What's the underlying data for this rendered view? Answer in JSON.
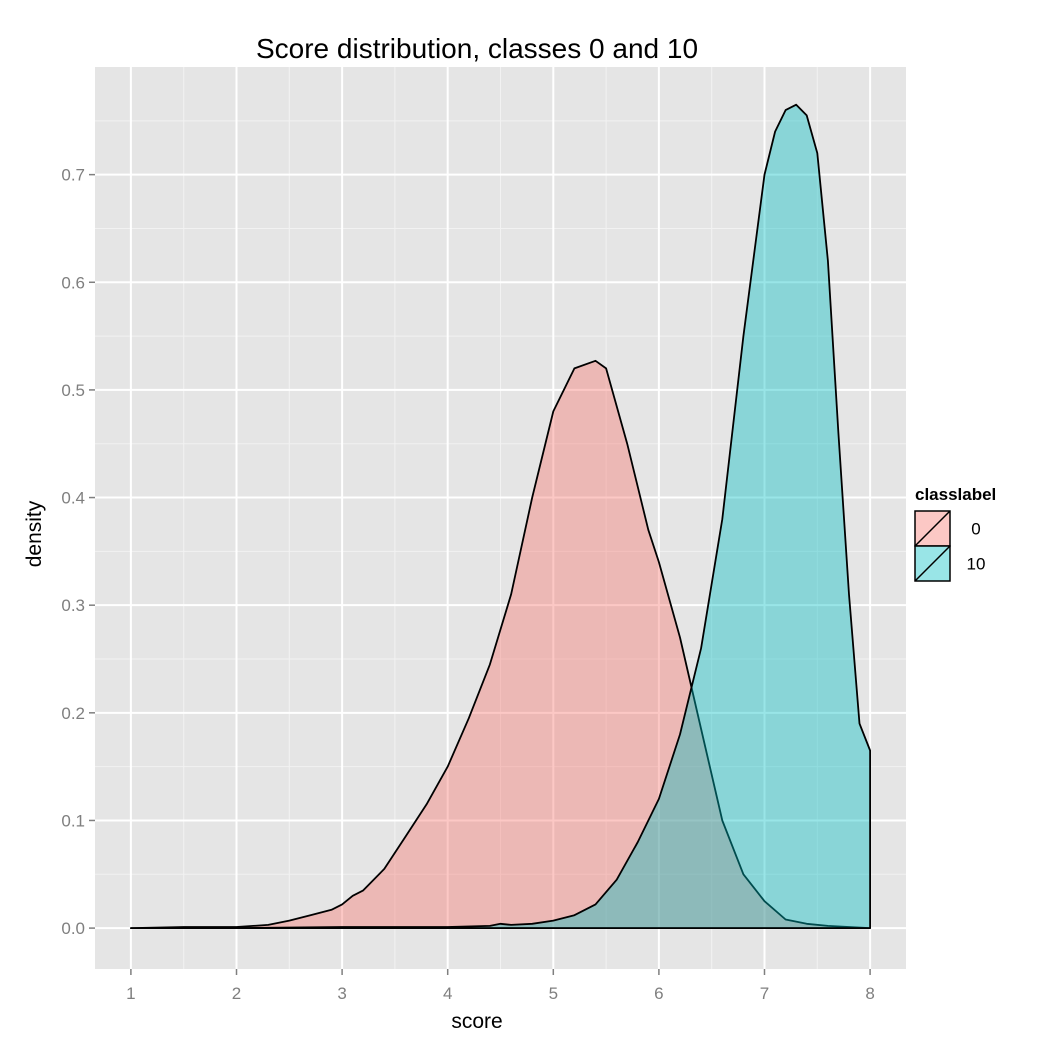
{
  "chart_data": {
    "type": "area",
    "title": "Score distribution, classes 0 and 10",
    "xlabel": "score",
    "ylabel": "density",
    "xlim": [
      0.66,
      8.34
    ],
    "ylim": [
      -0.038,
      0.8
    ],
    "x_ticks": [
      1,
      2,
      3,
      4,
      5,
      6,
      7,
      8
    ],
    "x_tick_labels": [
      "1",
      "2",
      "3",
      "4",
      "5",
      "6",
      "7",
      "8"
    ],
    "y_ticks": [
      0.0,
      0.1,
      0.2,
      0.3,
      0.4,
      0.5,
      0.6,
      0.7
    ],
    "y_tick_labels": [
      "0.0",
      "0.1",
      "0.2",
      "0.3",
      "0.4",
      "0.5",
      "0.6",
      "0.7"
    ],
    "grid": true,
    "background": "#e5e5e5",
    "legend": {
      "title": "classlabel",
      "position": "right",
      "entries": [
        "0",
        "10"
      ]
    },
    "series": [
      {
        "name": "0",
        "color": "#f8766d",
        "x": [
          1.0,
          1.5,
          2.0,
          2.3,
          2.5,
          2.7,
          2.9,
          3.0,
          3.1,
          3.2,
          3.4,
          3.6,
          3.8,
          4.0,
          4.2,
          4.4,
          4.6,
          4.8,
          5.0,
          5.2,
          5.4,
          5.5,
          5.7,
          5.9,
          6.0,
          6.2,
          6.4,
          6.6,
          6.8,
          7.0,
          7.2,
          7.4,
          7.6,
          7.8,
          8.0
        ],
        "y": [
          0.0,
          0.001,
          0.001,
          0.003,
          0.007,
          0.012,
          0.017,
          0.022,
          0.03,
          0.035,
          0.055,
          0.085,
          0.115,
          0.15,
          0.195,
          0.245,
          0.31,
          0.4,
          0.48,
          0.52,
          0.527,
          0.52,
          0.45,
          0.37,
          0.34,
          0.27,
          0.185,
          0.1,
          0.05,
          0.025,
          0.008,
          0.004,
          0.002,
          0.001,
          0.0
        ]
      },
      {
        "name": "10",
        "color": "#00bfc4",
        "x": [
          1.0,
          2.0,
          3.0,
          4.0,
          4.4,
          4.5,
          4.6,
          4.8,
          5.0,
          5.2,
          5.4,
          5.6,
          5.8,
          6.0,
          6.2,
          6.4,
          6.6,
          6.8,
          7.0,
          7.1,
          7.2,
          7.3,
          7.4,
          7.5,
          7.6,
          7.7,
          7.8,
          7.9,
          8.0,
          8.0
        ],
        "y": [
          0.0,
          0.0,
          0.001,
          0.001,
          0.002,
          0.004,
          0.003,
          0.004,
          0.007,
          0.012,
          0.022,
          0.045,
          0.08,
          0.12,
          0.18,
          0.26,
          0.38,
          0.55,
          0.7,
          0.74,
          0.76,
          0.765,
          0.755,
          0.72,
          0.62,
          0.46,
          0.31,
          0.19,
          0.165,
          0.0
        ]
      }
    ]
  }
}
